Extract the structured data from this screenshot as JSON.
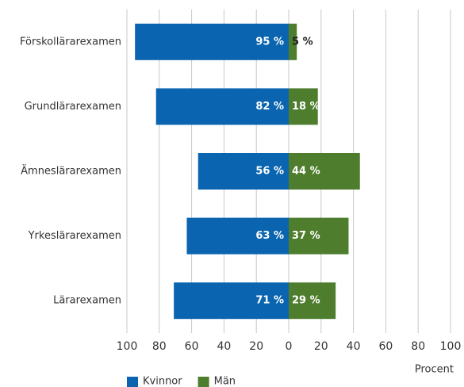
{
  "chart_data": {
    "type": "diverging-bar",
    "categories": [
      "Förskollärarexamen",
      "Grundlärarexamen",
      "Ämneslärarexamen",
      "Yrkeslärarexamen",
      "Lärarexamen"
    ],
    "series": [
      {
        "name": "Kvinnor",
        "color": "#0a64b0",
        "side": "left",
        "values": [
          95,
          82,
          56,
          63,
          71
        ],
        "value_labels": [
          "95 %",
          "82 %",
          "56 %",
          "63 %",
          "71 %"
        ]
      },
      {
        "name": "Män",
        "color": "#4e7d2d",
        "side": "right",
        "values": [
          5,
          18,
          44,
          37,
          29
        ],
        "value_labels": [
          "5 %",
          "18 %",
          "44 %",
          "37 %",
          "29 %"
        ]
      }
    ],
    "xlabel": "Procent",
    "xlim": [
      -100,
      100
    ],
    "xticks": [
      {
        "value": -100,
        "label": "100"
      },
      {
        "value": -80,
        "label": "80"
      },
      {
        "value": -60,
        "label": "60"
      },
      {
        "value": -40,
        "label": "40"
      },
      {
        "value": -20,
        "label": "20"
      },
      0,
      20,
      40,
      60,
      80,
      100
    ],
    "grid": true,
    "legend": "bottom"
  }
}
